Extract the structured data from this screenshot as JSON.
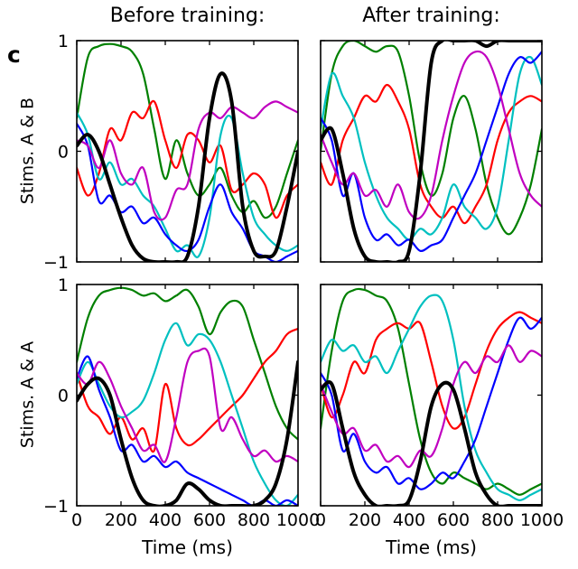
{
  "panel_label": "c",
  "figure": {
    "col_titles": [
      "Before training:",
      "After training:"
    ],
    "row_ylabels": [
      "Stims. A & B",
      "Stims. A & A"
    ],
    "xlabel": "Time (ms)",
    "xticks": [
      0,
      200,
      400,
      600,
      800,
      1000
    ],
    "yticks": [
      1,
      0,
      -1
    ],
    "ytick_labels": [
      "1",
      "0",
      "−1"
    ],
    "xlim": [
      0,
      1000
    ],
    "ylim": [
      -1,
      1
    ],
    "grid": false,
    "legend": "none",
    "background": "#ffffff",
    "frame_color": "#000000"
  },
  "chart_data": [
    {
      "type": "line",
      "position": "top-left",
      "column_title": "Before training:",
      "ylabel": "Stims. A & B",
      "xlim": [
        0,
        1000
      ],
      "ylim": [
        -1,
        1
      ],
      "show_x_tick_labels": false,
      "show_y_tick_labels": true,
      "x": [
        0,
        50,
        100,
        150,
        200,
        250,
        300,
        350,
        400,
        450,
        500,
        550,
        600,
        650,
        700,
        750,
        800,
        850,
        900,
        950,
        1000
      ],
      "series": [
        {
          "name": "unit-green",
          "color": "#008000",
          "width": 2.2,
          "values": [
            0.3,
            0.85,
            0.95,
            0.97,
            0.95,
            0.9,
            0.7,
            0.2,
            -0.25,
            0.1,
            -0.2,
            -0.4,
            -0.3,
            -0.15,
            -0.4,
            -0.55,
            -0.45,
            -0.6,
            -0.5,
            -0.2,
            0.1
          ]
        },
        {
          "name": "unit-red",
          "color": "#ff0000",
          "width": 2.2,
          "values": [
            -0.15,
            -0.4,
            -0.2,
            0.2,
            0.1,
            0.35,
            0.3,
            0.45,
            0.1,
            -0.15,
            0.15,
            0.1,
            -0.1,
            0.05,
            -0.35,
            -0.3,
            -0.2,
            -0.3,
            -0.6,
            -0.4,
            -0.3
          ]
        },
        {
          "name": "unit-cyan",
          "color": "#00c0c0",
          "width": 2.2,
          "values": [
            0.35,
            0.15,
            -0.25,
            -0.1,
            -0.3,
            -0.25,
            -0.4,
            -0.5,
            -0.7,
            -0.9,
            -0.85,
            -0.95,
            -0.6,
            0.15,
            0.3,
            -0.2,
            -0.6,
            -0.75,
            -0.85,
            -0.9,
            -0.85
          ]
        },
        {
          "name": "unit-blue",
          "color": "#0000ff",
          "width": 2.2,
          "values": [
            0.25,
            0.05,
            -0.45,
            -0.4,
            -0.55,
            -0.5,
            -0.65,
            -0.6,
            -0.75,
            -0.85,
            -0.9,
            -0.8,
            -0.5,
            -0.3,
            -0.55,
            -0.7,
            -0.9,
            -0.95,
            -1.0,
            -0.95,
            -0.9
          ]
        },
        {
          "name": "unit-magenta",
          "color": "#c000c0",
          "width": 2.2,
          "values": [
            0.1,
            0.05,
            -0.15,
            0.1,
            -0.2,
            -0.3,
            -0.15,
            -0.55,
            -0.6,
            -0.35,
            -0.3,
            0.2,
            0.35,
            0.3,
            0.4,
            0.35,
            0.3,
            0.4,
            0.45,
            0.4,
            0.35
          ]
        },
        {
          "name": "output-black",
          "color": "#000000",
          "width": 4.0,
          "values": [
            0.05,
            0.15,
            0.0,
            -0.3,
            -0.6,
            -0.85,
            -0.97,
            -1.0,
            -1.0,
            -1.0,
            -0.95,
            -0.5,
            0.3,
            0.7,
            0.45,
            -0.5,
            -0.9,
            -0.95,
            -0.9,
            -0.5,
            0.0
          ]
        }
      ]
    },
    {
      "type": "line",
      "position": "top-right",
      "column_title": "After training:",
      "ylabel": "Stims. A & B",
      "xlim": [
        0,
        1000
      ],
      "ylim": [
        -1,
        1
      ],
      "show_x_tick_labels": false,
      "show_y_tick_labels": false,
      "x": [
        0,
        50,
        100,
        150,
        200,
        250,
        300,
        350,
        400,
        450,
        500,
        550,
        600,
        650,
        700,
        750,
        800,
        850,
        900,
        950,
        1000
      ],
      "series": [
        {
          "name": "unit-green",
          "color": "#008000",
          "width": 2.2,
          "values": [
            0.0,
            0.7,
            0.95,
            1.0,
            0.95,
            0.9,
            0.95,
            0.9,
            0.5,
            -0.1,
            -0.4,
            -0.2,
            0.3,
            0.5,
            0.2,
            -0.3,
            -0.6,
            -0.75,
            -0.6,
            -0.3,
            0.2
          ]
        },
        {
          "name": "unit-red",
          "color": "#ff0000",
          "width": 2.2,
          "values": [
            -0.1,
            -0.3,
            0.1,
            0.3,
            0.5,
            0.45,
            0.6,
            0.45,
            0.2,
            -0.3,
            -0.5,
            -0.6,
            -0.5,
            -0.65,
            -0.5,
            -0.3,
            0.1,
            0.35,
            0.45,
            0.5,
            0.45
          ]
        },
        {
          "name": "unit-cyan",
          "color": "#00c0c0",
          "width": 2.2,
          "values": [
            0.2,
            0.7,
            0.5,
            0.3,
            -0.1,
            -0.4,
            -0.6,
            -0.7,
            -0.8,
            -0.7,
            -0.75,
            -0.6,
            -0.3,
            -0.5,
            -0.6,
            -0.7,
            -0.5,
            0.1,
            0.7,
            0.85,
            0.6
          ]
        },
        {
          "name": "unit-blue",
          "color": "#0000ff",
          "width": 2.2,
          "values": [
            0.3,
            0.1,
            -0.4,
            -0.2,
            -0.6,
            -0.8,
            -0.75,
            -0.85,
            -0.8,
            -0.9,
            -0.85,
            -0.8,
            -0.6,
            -0.4,
            -0.2,
            0.1,
            0.4,
            0.7,
            0.85,
            0.8,
            0.9
          ]
        },
        {
          "name": "unit-magenta",
          "color": "#c000c0",
          "width": 2.2,
          "values": [
            0.15,
            -0.1,
            -0.3,
            -0.2,
            -0.4,
            -0.35,
            -0.5,
            -0.3,
            -0.55,
            -0.6,
            -0.4,
            0.1,
            0.5,
            0.8,
            0.9,
            0.85,
            0.6,
            0.2,
            -0.2,
            -0.4,
            -0.5
          ]
        },
        {
          "name": "output-black",
          "color": "#000000",
          "width": 4.0,
          "values": [
            0.1,
            0.2,
            -0.2,
            -0.7,
            -0.95,
            -1.0,
            -1.0,
            -1.0,
            -0.9,
            -0.2,
            0.8,
            1.0,
            1.0,
            1.0,
            1.0,
            0.95,
            1.0,
            1.0,
            1.0,
            1.0,
            1.0
          ]
        }
      ]
    },
    {
      "type": "line",
      "position": "bottom-left",
      "column_title": "Before training:",
      "ylabel": "Stims. A & A",
      "xlim": [
        0,
        1000
      ],
      "ylim": [
        -1,
        1
      ],
      "show_x_tick_labels": true,
      "show_y_tick_labels": true,
      "x": [
        0,
        50,
        100,
        150,
        200,
        250,
        300,
        350,
        400,
        450,
        500,
        550,
        600,
        650,
        700,
        750,
        800,
        850,
        900,
        950,
        1000
      ],
      "series": [
        {
          "name": "unit-green",
          "color": "#008000",
          "width": 2.2,
          "values": [
            0.3,
            0.7,
            0.9,
            0.95,
            0.97,
            0.95,
            0.9,
            0.92,
            0.85,
            0.9,
            0.95,
            0.8,
            0.55,
            0.75,
            0.85,
            0.8,
            0.5,
            0.2,
            -0.1,
            -0.3,
            -0.4
          ]
        },
        {
          "name": "unit-red",
          "color": "#ff0000",
          "width": 2.2,
          "values": [
            0.2,
            -0.1,
            -0.2,
            -0.35,
            -0.2,
            -0.4,
            -0.3,
            -0.5,
            0.1,
            -0.3,
            -0.45,
            -0.4,
            -0.3,
            -0.2,
            -0.1,
            0.0,
            0.15,
            0.3,
            0.4,
            0.55,
            0.6
          ]
        },
        {
          "name": "unit-cyan",
          "color": "#00c0c0",
          "width": 2.2,
          "values": [
            0.1,
            0.3,
            0.1,
            -0.1,
            -0.2,
            -0.15,
            -0.05,
            0.2,
            0.5,
            0.65,
            0.45,
            0.55,
            0.5,
            0.3,
            0.0,
            -0.3,
            -0.6,
            -0.8,
            -0.95,
            -1.0,
            -0.9
          ]
        },
        {
          "name": "unit-blue",
          "color": "#0000ff",
          "width": 2.2,
          "values": [
            0.15,
            0.35,
            0.05,
            -0.2,
            -0.5,
            -0.45,
            -0.6,
            -0.55,
            -0.65,
            -0.6,
            -0.7,
            -0.75,
            -0.8,
            -0.85,
            -0.9,
            -0.95,
            -1.0,
            -0.95,
            -1.0,
            -0.95,
            -1.0
          ]
        },
        {
          "name": "unit-magenta",
          "color": "#c000c0",
          "width": 2.2,
          "values": [
            0.2,
            0.1,
            0.3,
            0.15,
            -0.1,
            -0.3,
            -0.5,
            -0.45,
            -0.6,
            -0.2,
            0.3,
            0.4,
            0.35,
            -0.3,
            -0.2,
            -0.4,
            -0.55,
            -0.5,
            -0.6,
            -0.55,
            -0.6
          ]
        },
        {
          "name": "output-black",
          "color": "#000000",
          "width": 4.0,
          "values": [
            -0.05,
            0.1,
            0.15,
            0.0,
            -0.4,
            -0.75,
            -0.95,
            -1.0,
            -1.0,
            -0.95,
            -0.8,
            -0.85,
            -0.95,
            -1.0,
            -1.0,
            -1.0,
            -1.0,
            -0.95,
            -0.8,
            -0.4,
            0.3
          ]
        }
      ]
    },
    {
      "type": "line",
      "position": "bottom-right",
      "column_title": "After training:",
      "ylabel": "Stims. A & A",
      "xlim": [
        0,
        1000
      ],
      "ylim": [
        -1,
        1
      ],
      "show_x_tick_labels": true,
      "show_y_tick_labels": false,
      "x": [
        0,
        50,
        100,
        150,
        200,
        250,
        300,
        350,
        400,
        450,
        500,
        550,
        600,
        650,
        700,
        750,
        800,
        850,
        900,
        950,
        1000
      ],
      "series": [
        {
          "name": "unit-green",
          "color": "#008000",
          "width": 2.2,
          "values": [
            -0.3,
            0.4,
            0.85,
            0.95,
            0.95,
            0.9,
            0.85,
            0.6,
            0.1,
            -0.4,
            -0.7,
            -0.8,
            -0.7,
            -0.75,
            -0.8,
            -0.85,
            -0.8,
            -0.85,
            -0.9,
            -0.85,
            -0.8
          ]
        },
        {
          "name": "unit-red",
          "color": "#ff0000",
          "width": 2.2,
          "values": [
            0.1,
            -0.2,
            0.0,
            0.3,
            0.2,
            0.5,
            0.6,
            0.65,
            0.6,
            0.65,
            0.3,
            -0.1,
            -0.3,
            -0.2,
            0.1,
            0.4,
            0.6,
            0.7,
            0.75,
            0.7,
            0.65
          ]
        },
        {
          "name": "unit-cyan",
          "color": "#00c0c0",
          "width": 2.2,
          "values": [
            0.3,
            0.5,
            0.4,
            0.45,
            0.3,
            0.35,
            0.2,
            0.4,
            0.6,
            0.8,
            0.9,
            0.85,
            0.5,
            -0.1,
            -0.5,
            -0.7,
            -0.85,
            -0.9,
            -0.95,
            -0.9,
            -0.85
          ]
        },
        {
          "name": "unit-blue",
          "color": "#0000ff",
          "width": 2.2,
          "values": [
            0.2,
            0.0,
            -0.5,
            -0.35,
            -0.6,
            -0.7,
            -0.65,
            -0.8,
            -0.75,
            -0.85,
            -0.8,
            -0.7,
            -0.75,
            -0.6,
            -0.4,
            -0.1,
            0.2,
            0.5,
            0.7,
            0.6,
            0.7
          ]
        },
        {
          "name": "unit-magenta",
          "color": "#c000c0",
          "width": 2.2,
          "values": [
            0.1,
            -0.15,
            -0.35,
            -0.3,
            -0.5,
            -0.45,
            -0.6,
            -0.55,
            -0.65,
            -0.5,
            -0.55,
            -0.3,
            0.1,
            0.3,
            0.2,
            0.35,
            0.3,
            0.45,
            0.3,
            0.4,
            0.35
          ]
        },
        {
          "name": "output-black",
          "color": "#000000",
          "width": 4.0,
          "values": [
            0.05,
            0.1,
            -0.3,
            -0.7,
            -0.9,
            -1.0,
            -1.0,
            -1.0,
            -0.95,
            -0.6,
            -0.1,
            0.1,
            0.05,
            -0.3,
            -0.7,
            -0.9,
            -1.0,
            -1.0,
            -1.0,
            -1.0,
            -1.0
          ]
        }
      ]
    }
  ]
}
